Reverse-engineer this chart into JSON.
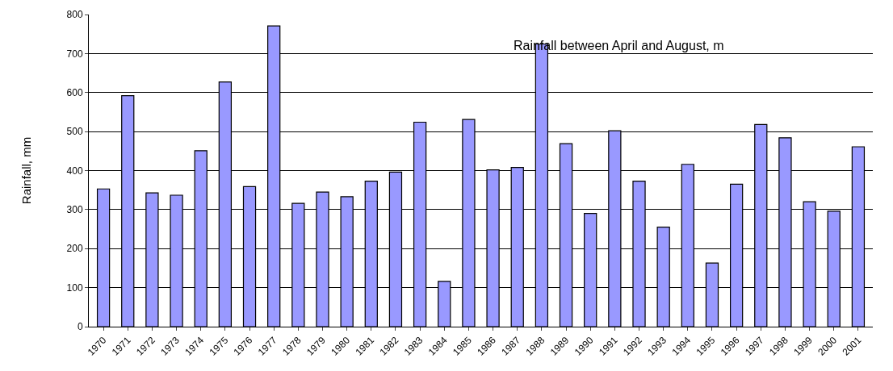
{
  "chart_data": {
    "type": "bar",
    "title": "Rainfall between April and August, m",
    "ylabel": "Rainfall, mm",
    "categories": [
      "1970",
      "1971",
      "1972",
      "1973",
      "1974",
      "1975",
      "1976",
      "1977",
      "1978",
      "1979",
      "1980",
      "1981",
      "1982",
      "1983",
      "1984",
      "1985",
      "1986",
      "1987",
      "1988",
      "1989",
      "1990",
      "1991",
      "1992",
      "1993",
      "1994",
      "1995",
      "1996",
      "1997",
      "1998",
      "1999",
      "2000",
      "2001"
    ],
    "values": [
      353,
      592,
      343,
      337,
      451,
      627,
      359,
      771,
      316,
      345,
      333,
      373,
      396,
      524,
      116,
      531,
      402,
      408,
      724,
      469,
      290,
      502,
      373,
      255,
      416,
      163,
      365,
      518,
      484,
      320,
      296,
      461
    ],
    "color": "#9999ff",
    "ylim": [
      0,
      800
    ],
    "yticks": [
      0,
      100,
      200,
      300,
      400,
      500,
      600,
      700,
      800
    ],
    "grid": "y",
    "legend": false
  }
}
